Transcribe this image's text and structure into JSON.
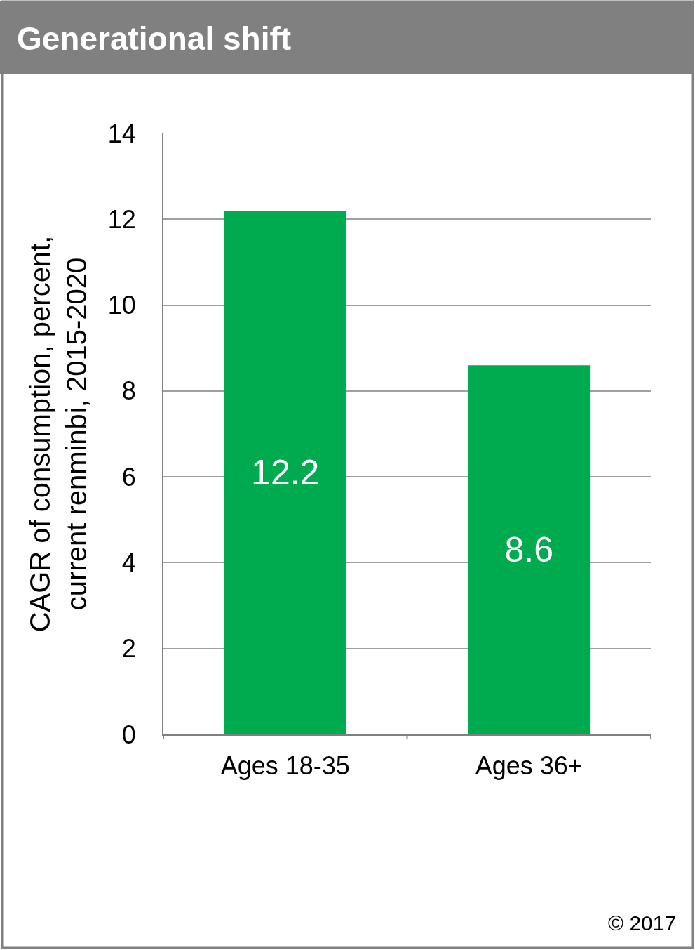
{
  "chart_data": {
    "type": "bar",
    "title": "Generational shift",
    "ylabel": "CAGR of consumption, percent,\ncurrent renminbi, 2015-2020",
    "categories": [
      "Ages 18-35",
      "Ages 36+"
    ],
    "values": [
      12.2,
      8.6
    ],
    "color": "#00aa4f",
    "ylim": [
      0,
      14
    ],
    "yticks": [
      0,
      2,
      4,
      6,
      8,
      10,
      12,
      14
    ],
    "grid": "y",
    "data_labels": true,
    "legend": false,
    "annotations": [
      "© 2017"
    ]
  }
}
